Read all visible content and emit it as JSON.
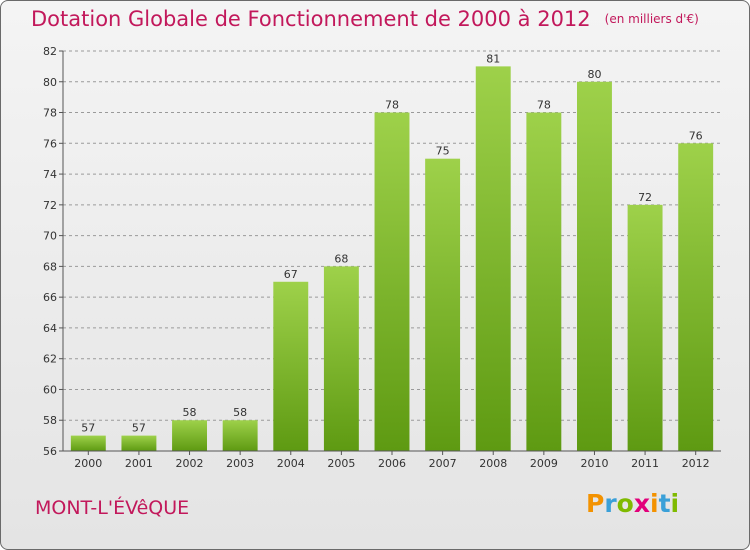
{
  "title": "Dotation Globale de Fonctionnement de 2000 à 2012",
  "unit_note": "(en milliers d'€)",
  "town": "MONT-L'ÉVêQUE",
  "brand": {
    "letters": [
      "P",
      "r",
      "o",
      "x",
      "i",
      "t",
      "i"
    ],
    "colors": [
      "#f39200",
      "#3aa0d8",
      "#7fba00",
      "#e2007a",
      "#f39200",
      "#3aa0d8",
      "#7fba00"
    ]
  },
  "colors": {
    "bar_light": "#9ed14a",
    "bar_dark": "#5e9a12",
    "title": "#c2185b",
    "grid": "#9a9a9a"
  },
  "chart_data": {
    "type": "bar",
    "title": "Dotation Globale de Fonctionnement de 2000 à 2012",
    "xlabel": "",
    "ylabel": "",
    "categories": [
      "2000",
      "2001",
      "2002",
      "2003",
      "2004",
      "2005",
      "2006",
      "2007",
      "2008",
      "2009",
      "2010",
      "2011",
      "2012"
    ],
    "values": [
      57,
      57,
      58,
      58,
      67,
      68,
      78,
      75,
      81,
      78,
      80,
      72,
      76
    ],
    "ylim": [
      56,
      82
    ],
    "yticks": [
      56,
      58,
      60,
      62,
      64,
      66,
      68,
      70,
      72,
      74,
      76,
      78,
      80,
      82
    ],
    "grid": true,
    "grid_style": "dashed horizontal",
    "data_labels": true
  }
}
